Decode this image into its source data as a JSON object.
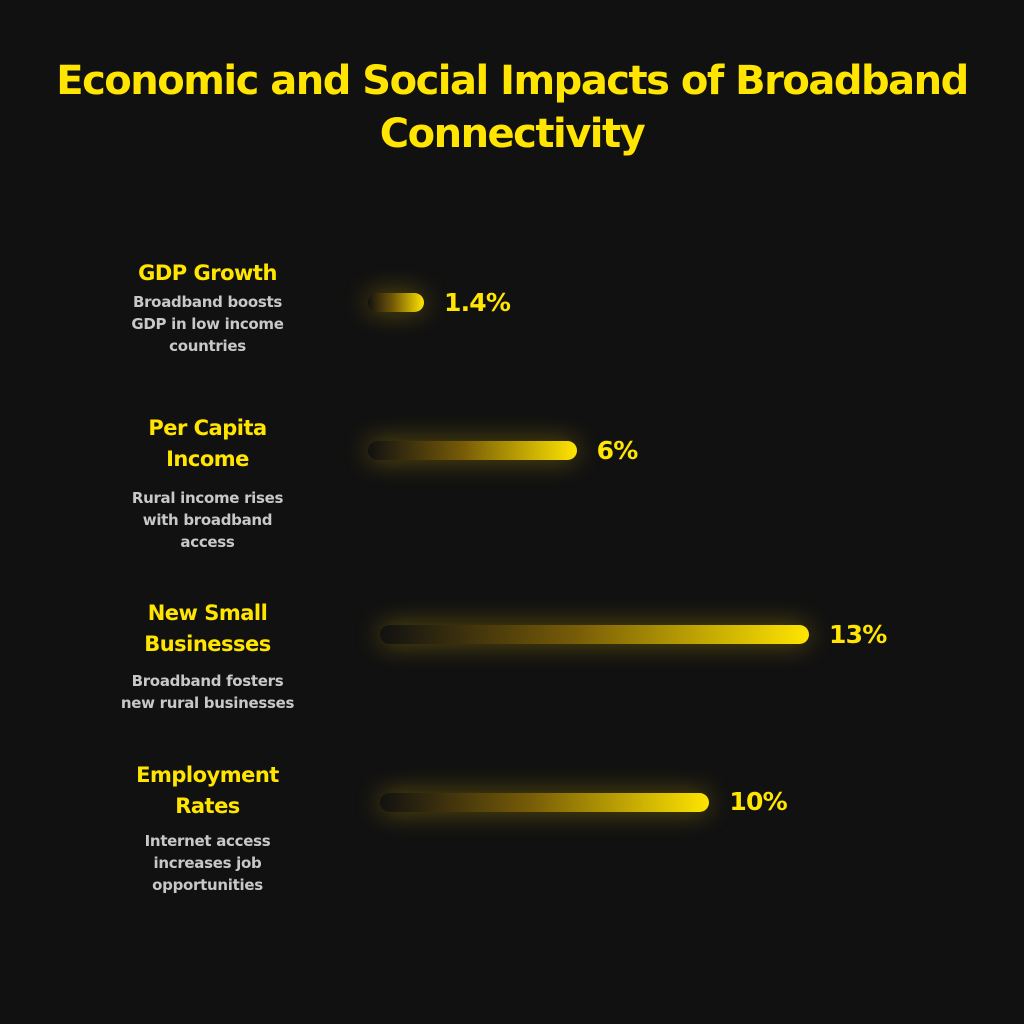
{
  "title": "Economic and Social Impacts of Broadband Connectivity",
  "colors": {
    "background": "#111111",
    "accent": "#FFE500",
    "description": "#C8C8C8"
  },
  "chart_data": {
    "type": "bar",
    "orientation": "horizontal",
    "title": "Economic and Social Impacts of Broadband Connectivity",
    "categories": [
      "GDP Growth",
      "Per Capita Income",
      "New Small Businesses",
      "Employment Rates"
    ],
    "values": [
      1.4,
      6,
      13,
      10
    ],
    "value_labels": [
      "1.4%",
      "6%",
      "13%",
      "10%"
    ],
    "grid": false,
    "legend": "none"
  },
  "items": [
    {
      "metric_lines": [
        "GDP Growth"
      ],
      "description_lines": [
        "Broadband boosts",
        "GDP in low income",
        "countries"
      ],
      "value": "1.4%"
    },
    {
      "metric_lines": [
        "Per Capita",
        "Income"
      ],
      "description_lines": [
        "Rural income rises",
        "with broadband",
        "access"
      ],
      "value": "6%"
    },
    {
      "metric_lines": [
        "New Small",
        "Businesses"
      ],
      "description_lines": [
        "Broadband fosters",
        "new rural businesses"
      ],
      "value": "13%"
    },
    {
      "metric_lines": [
        "Employment",
        "Rates"
      ],
      "description_lines": [
        "Internet access",
        "increases job",
        "opportunities"
      ],
      "value": "10%"
    }
  ]
}
